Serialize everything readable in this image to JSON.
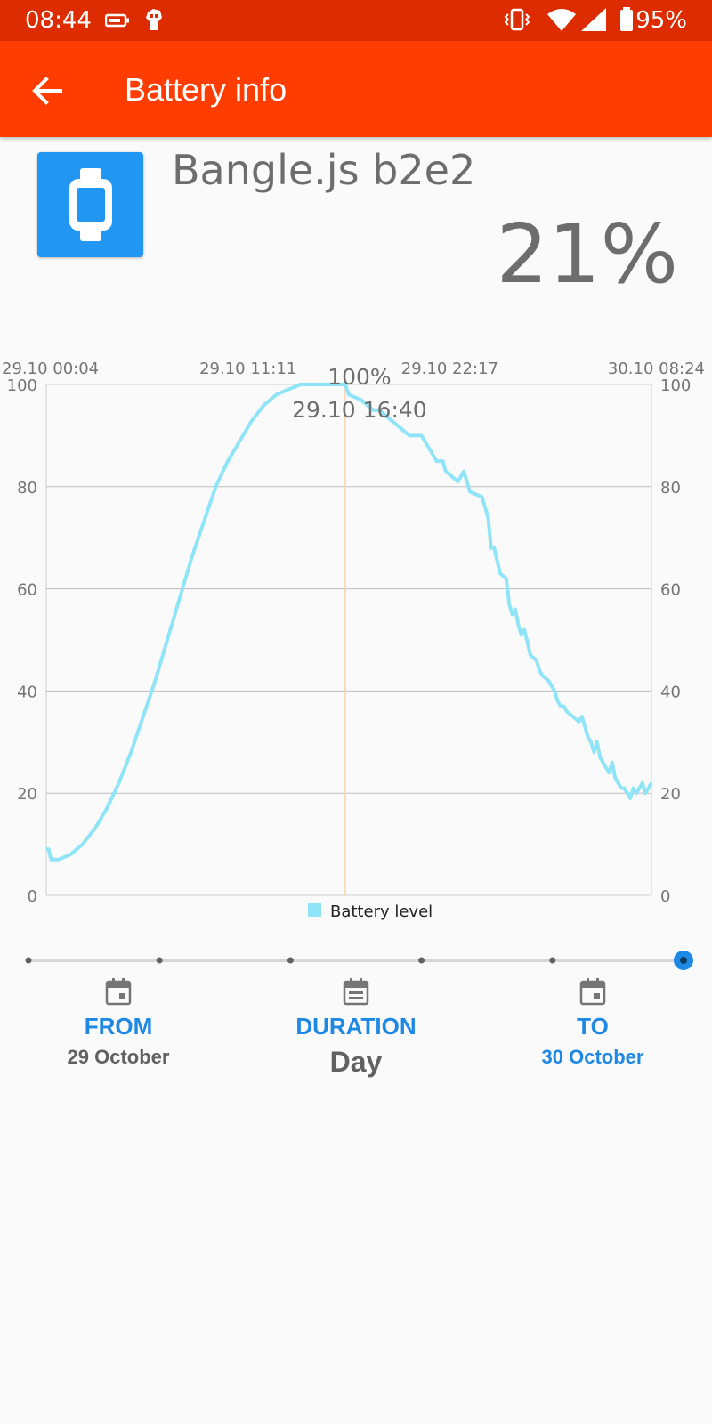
{
  "status_bar": {
    "time": "08:44",
    "battery_percent": "95%",
    "icons": [
      "battery-saver-icon",
      "fist-icon",
      "vibrate-icon",
      "wifi-icon",
      "cellular-signal-icon",
      "battery-icon"
    ]
  },
  "app_bar": {
    "title": "Battery info",
    "back_icon": "arrow-back-icon",
    "color": "#ff3d00"
  },
  "device": {
    "name": "Bangle.js b2e2",
    "battery_level": "21%",
    "icon": "watch-icon",
    "icon_color": "#2196f3"
  },
  "chart_data": {
    "type": "line",
    "x_top_labels": [
      "29.10 00:04",
      "29.10 11:11",
      "29.10 22:17",
      "30.10 08:24"
    ],
    "y_ticks": [
      0,
      20,
      40,
      60,
      80,
      100
    ],
    "ylim": [
      0,
      100
    ],
    "grid": true,
    "legend": {
      "position": "bottom-center",
      "label": "Battery level"
    },
    "highlight": {
      "value_label": "100%",
      "time_label": "29.10 16:40",
      "x": 0.494
    },
    "series": [
      {
        "name": "Battery level",
        "color": "#90e4f7",
        "x": [
          0.0,
          0.004,
          0.008,
          0.02,
          0.04,
          0.06,
          0.08,
          0.1,
          0.12,
          0.14,
          0.16,
          0.18,
          0.2,
          0.22,
          0.24,
          0.26,
          0.28,
          0.3,
          0.32,
          0.34,
          0.36,
          0.38,
          0.4,
          0.42,
          0.44,
          0.46,
          0.48,
          0.494,
          0.5,
          0.52,
          0.54,
          0.55,
          0.56,
          0.57,
          0.58,
          0.59,
          0.6,
          0.61,
          0.62,
          0.63,
          0.64,
          0.645,
          0.65,
          0.655,
          0.66,
          0.67,
          0.68,
          0.69,
          0.7,
          0.72,
          0.73,
          0.735,
          0.74,
          0.75,
          0.76,
          0.765,
          0.77,
          0.775,
          0.78,
          0.785,
          0.79,
          0.8,
          0.81,
          0.815,
          0.82,
          0.83,
          0.835,
          0.84,
          0.845,
          0.85,
          0.855,
          0.86,
          0.87,
          0.88,
          0.885,
          0.89,
          0.895,
          0.9,
          0.905,
          0.91,
          0.915,
          0.92,
          0.925,
          0.93,
          0.935,
          0.94,
          0.945,
          0.95,
          0.955,
          0.96,
          0.965,
          0.97,
          0.975,
          0.98,
          0.985,
          0.99,
          0.995,
          1.0
        ],
        "y": [
          9,
          9,
          7,
          7,
          8,
          10,
          13,
          17,
          22,
          28,
          35,
          42,
          50,
          58,
          66,
          73,
          80,
          85,
          89,
          93,
          96,
          98,
          99,
          100,
          100,
          100,
          100,
          100,
          98,
          97,
          95,
          95,
          94,
          93,
          92,
          91,
          90,
          90,
          90,
          88,
          86,
          85,
          85,
          85,
          83,
          82,
          81,
          83,
          79,
          78,
          74,
          68,
          68,
          63,
          62,
          57,
          55,
          56,
          53,
          51,
          52,
          47,
          46,
          44,
          43,
          42,
          41,
          40,
          38,
          37,
          37,
          36,
          35,
          34,
          35,
          33,
          31,
          30,
          28,
          30,
          27,
          26,
          25,
          24,
          26,
          23,
          22,
          21,
          21,
          20,
          19,
          21,
          20,
          21,
          22,
          20,
          21,
          22
        ]
      }
    ]
  },
  "timeline": {
    "stops": 6,
    "selected_index": 5,
    "accent": "#1e88e5"
  },
  "from": {
    "label": "FROM",
    "value": "29 October",
    "icon": "calendar-icon"
  },
  "duration": {
    "label": "DURATION",
    "value": "Day",
    "icon": "calendar-icon"
  },
  "to": {
    "label": "TO",
    "value": "30 October",
    "icon": "calendar-icon"
  }
}
